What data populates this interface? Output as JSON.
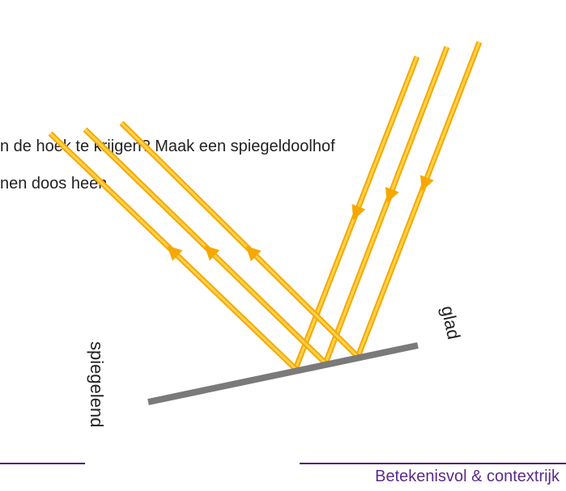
{
  "body": {
    "lines": [
      "n de hoek te krijgen? Maak een spiegeldoolhof",
      "nen doos heen."
    ]
  },
  "figure": {
    "label_smooth": "glad",
    "label_mirror": "spiegelend"
  },
  "footer": "Betekenisvol & contextrijk"
}
